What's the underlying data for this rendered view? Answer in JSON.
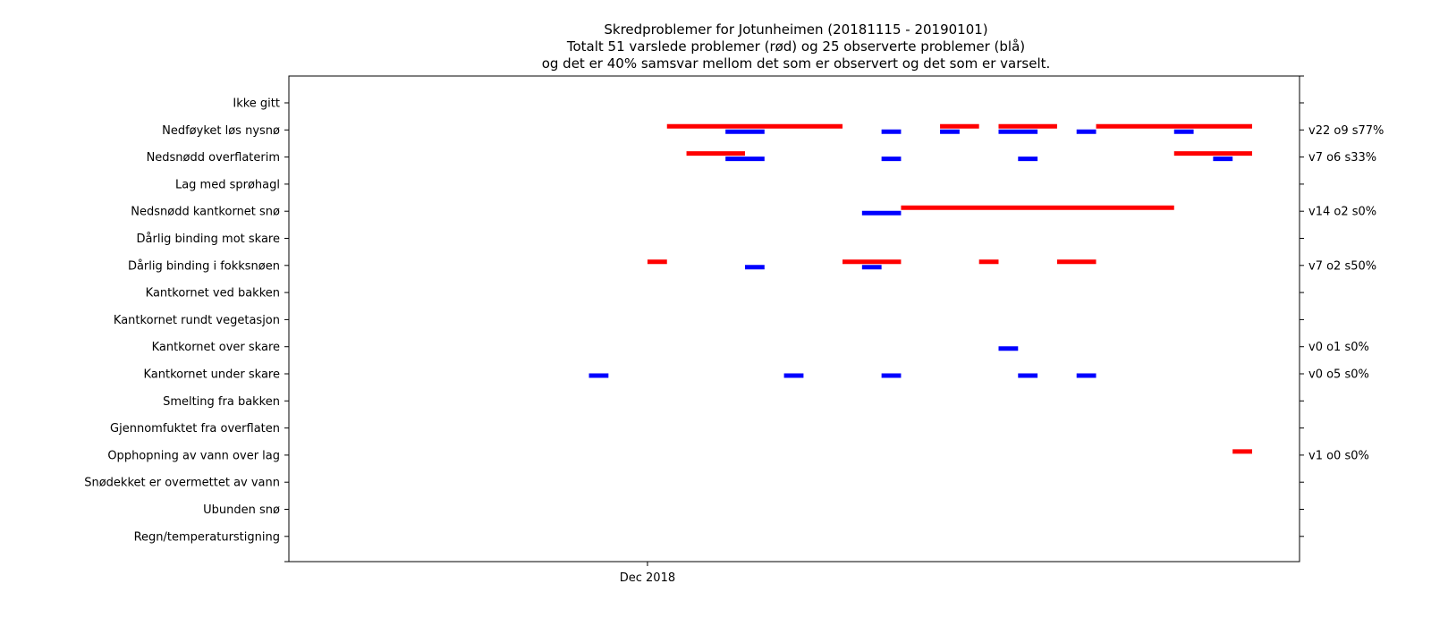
{
  "chart_data": {
    "type": "gantt",
    "title": [
      "Skredproblemer for Jotunheimen (20181115 - 20190101)",
      "Totalt 51 varslede problemer (rød) og 25 observerte problemer (blå)",
      "og det er 40% samsvar mellom det som er observert og det som er varselt."
    ],
    "x_range": [
      "2018-11-15",
      "2019-01-01"
    ],
    "x_ticks": [
      {
        "date": "2018-12-01",
        "label": "Dec 2018"
      }
    ],
    "colors": {
      "forecast": "#ff0000",
      "observed": "#0000ff"
    },
    "categories": [
      "Ikke gitt",
      "Nedføyket løs nysnø",
      "Nedsnødd overflaterim",
      "Lag med sprøhagl",
      "Nedsnødd kantkornet snø",
      "Dårlig binding mot skare",
      "Dårlig binding i fokksnøen",
      "Kantkornet ved bakken",
      "Kantkornet rundt vegetasjon",
      "Kantkornet over skare",
      "Kantkornet under skare",
      "Smelting fra bakken",
      "Gjennomfuktet fra overflaten",
      "Opphopning av vann over lag",
      "Snødekket er overmettet av vann",
      "Ubunden snø",
      "Regn/temperaturstigning"
    ],
    "right_labels": [
      "",
      "v22 o9 s77%",
      "v7 o6 s33%",
      "",
      "v14 o2 s0%",
      "",
      "v7 o2 s50%",
      "",
      "",
      "v0 o1 s0%",
      "v0 o5 s0%",
      "",
      "",
      "v1 o0 s0%",
      "",
      "",
      ""
    ],
    "forecast": [
      {
        "row": 1,
        "start": "2018-12-02",
        "end": "2018-12-11"
      },
      {
        "row": 1,
        "start": "2018-12-16",
        "end": "2018-12-18"
      },
      {
        "row": 1,
        "start": "2018-12-19",
        "end": "2018-12-22"
      },
      {
        "row": 1,
        "start": "2018-12-24",
        "end": "2019-01-01"
      },
      {
        "row": 2,
        "start": "2018-12-03",
        "end": "2018-12-06"
      },
      {
        "row": 2,
        "start": "2018-12-28",
        "end": "2019-01-01"
      },
      {
        "row": 4,
        "start": "2018-12-14",
        "end": "2018-12-28"
      },
      {
        "row": 6,
        "start": "2018-12-01",
        "end": "2018-12-02"
      },
      {
        "row": 6,
        "start": "2018-12-11",
        "end": "2018-12-14"
      },
      {
        "row": 6,
        "start": "2018-12-18",
        "end": "2018-12-19"
      },
      {
        "row": 6,
        "start": "2018-12-22",
        "end": "2018-12-24"
      },
      {
        "row": 13,
        "start": "2018-12-31",
        "end": "2019-01-01"
      }
    ],
    "observed": [
      {
        "row": 1,
        "start": "2018-12-05",
        "end": "2018-12-07"
      },
      {
        "row": 1,
        "start": "2018-12-13",
        "end": "2018-12-14"
      },
      {
        "row": 1,
        "start": "2018-12-16",
        "end": "2018-12-17"
      },
      {
        "row": 1,
        "start": "2018-12-19",
        "end": "2018-12-21"
      },
      {
        "row": 1,
        "start": "2018-12-23",
        "end": "2018-12-24"
      },
      {
        "row": 1,
        "start": "2018-12-28",
        "end": "2018-12-29"
      },
      {
        "row": 2,
        "start": "2018-12-05",
        "end": "2018-12-07"
      },
      {
        "row": 2,
        "start": "2018-12-13",
        "end": "2018-12-14"
      },
      {
        "row": 2,
        "start": "2018-12-20",
        "end": "2018-12-21"
      },
      {
        "row": 2,
        "start": "2018-12-30",
        "end": "2018-12-31"
      },
      {
        "row": 4,
        "start": "2018-12-12",
        "end": "2018-12-14"
      },
      {
        "row": 6,
        "start": "2018-12-06",
        "end": "2018-12-07"
      },
      {
        "row": 6,
        "start": "2018-12-12",
        "end": "2018-12-13"
      },
      {
        "row": 9,
        "start": "2018-12-19",
        "end": "2018-12-20"
      },
      {
        "row": 10,
        "start": "2018-11-28",
        "end": "2018-11-29"
      },
      {
        "row": 10,
        "start": "2018-12-08",
        "end": "2018-12-09"
      },
      {
        "row": 10,
        "start": "2018-12-13",
        "end": "2018-12-14"
      },
      {
        "row": 10,
        "start": "2018-12-20",
        "end": "2018-12-21"
      },
      {
        "row": 10,
        "start": "2018-12-23",
        "end": "2018-12-24"
      }
    ]
  }
}
